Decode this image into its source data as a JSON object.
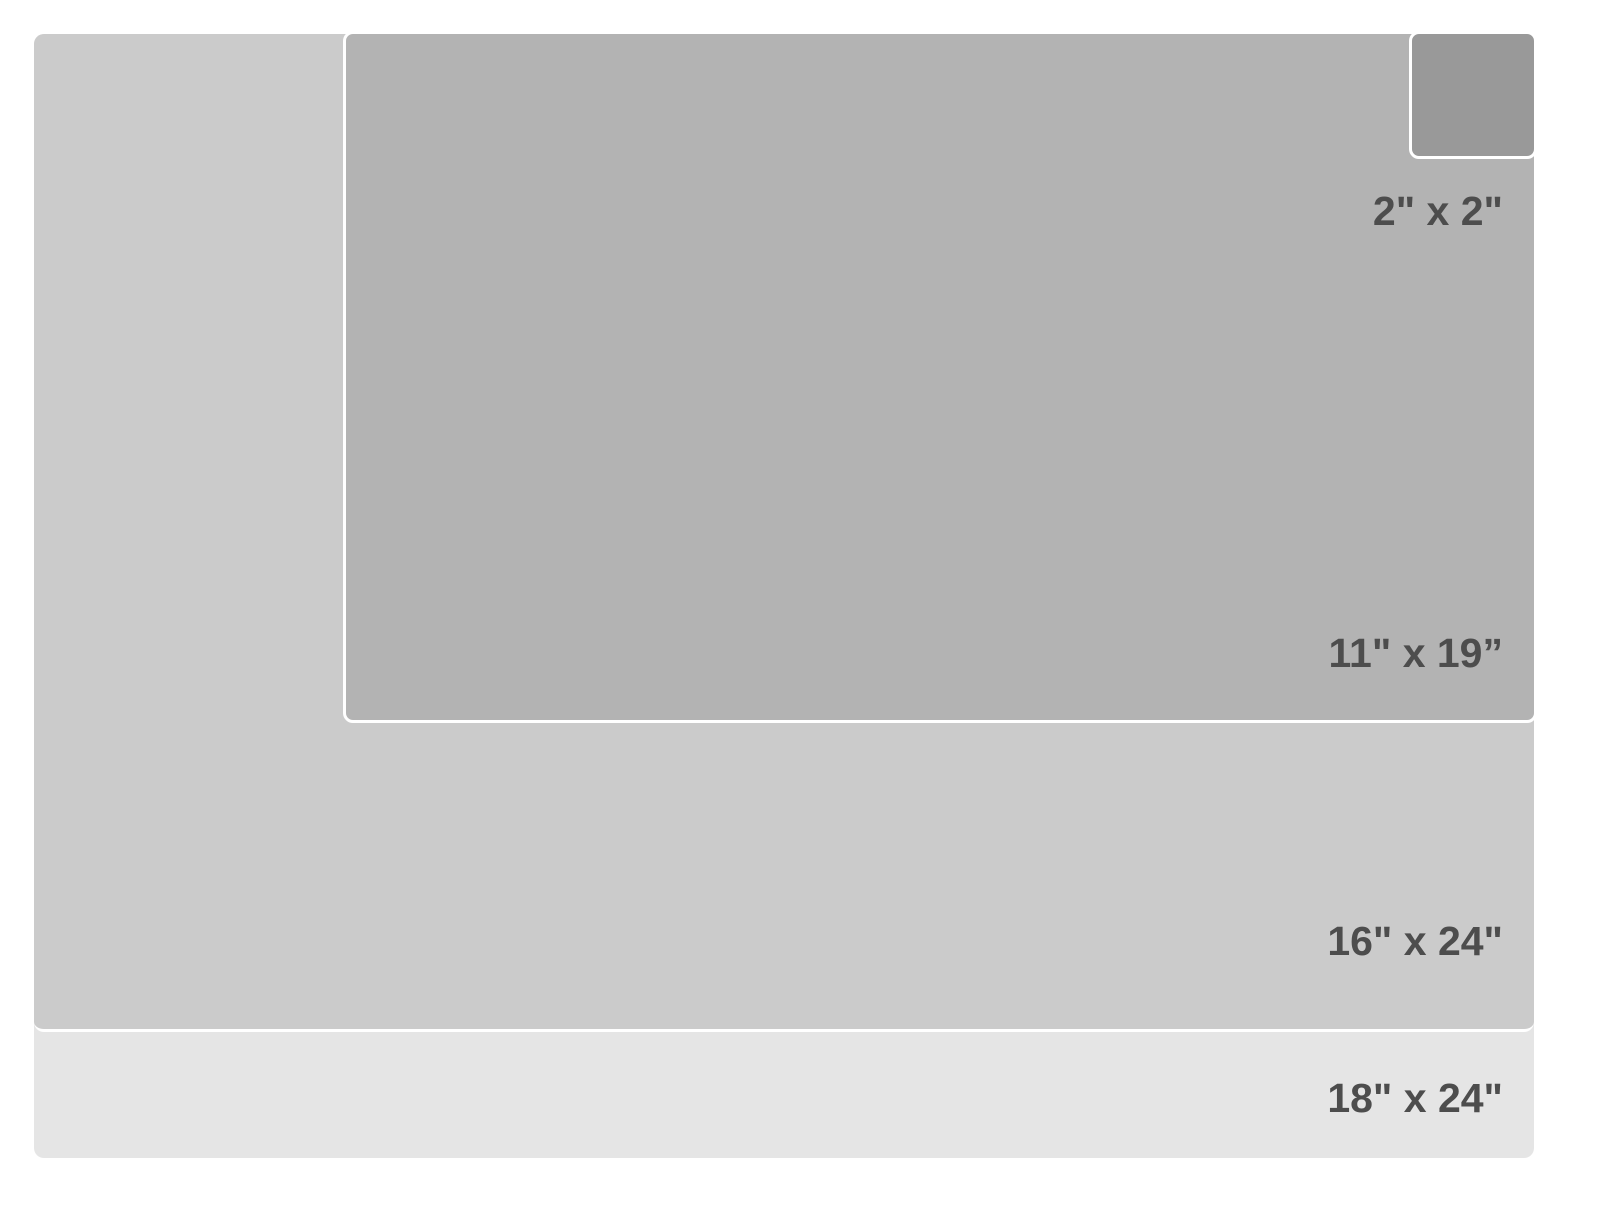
{
  "sizes": [
    {
      "label": "18\" x 24\"",
      "color": "#e5e5e5"
    },
    {
      "label": "16\" x 24\"",
      "color": "#cbcbcb"
    },
    {
      "label": "11\" x 19”",
      "color": "#b3b3b3"
    },
    {
      "label": "2\" x 2\"",
      "color": "#999999"
    }
  ]
}
